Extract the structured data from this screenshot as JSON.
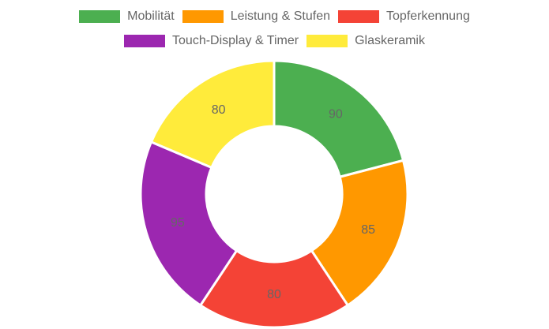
{
  "chart_data": {
    "type": "pie",
    "variant": "doughnut",
    "categories": [
      "Mobilität",
      "Leistung & Stufen",
      "Topferkennung",
      "Touch-Display & Timer",
      "Glaskeramik"
    ],
    "values": [
      90,
      85,
      80,
      95,
      80
    ],
    "value_labels": [
      "90",
      "85",
      "80",
      "95",
      "80"
    ],
    "colors": [
      "#4caf50",
      "#ff9800",
      "#f44336",
      "#9c27b0",
      "#ffeb3b"
    ],
    "legend_placement": "top"
  }
}
